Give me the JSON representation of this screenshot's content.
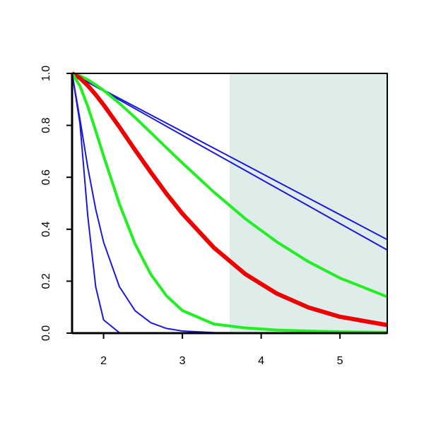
{
  "chart_data": {
    "type": "line",
    "x": [
      1.6,
      1.7,
      1.8,
      1.9,
      2.0,
      2.2,
      2.4,
      2.6,
      2.8,
      3.0,
      3.4,
      3.8,
      4.2,
      4.6,
      5.0,
      5.6
    ],
    "series": [
      {
        "color": "#1a1ad6",
        "width": 2,
        "values": [
          1,
          0.984,
          0.968,
          0.952,
          0.936,
          0.904,
          0.872,
          0.84,
          0.808,
          0.776,
          0.712,
          0.648,
          0.584,
          0.52,
          0.456,
          0.36
        ]
      },
      {
        "color": "#1a1ad6",
        "width": 2,
        "values": [
          1,
          0.983,
          0.966,
          0.949,
          0.932,
          0.898,
          0.864,
          0.83,
          0.796,
          0.762,
          0.694,
          0.626,
          0.558,
          0.49,
          0.422,
          0.32
        ]
      },
      {
        "color": "#22ee22",
        "width": 4,
        "values": [
          1,
          0.991,
          0.976,
          0.956,
          0.935,
          0.885,
          0.83,
          0.772,
          0.713,
          0.655,
          0.543,
          0.44,
          0.351,
          0.275,
          0.212,
          0.14
        ]
      },
      {
        "color": "#ee0000",
        "width": 6,
        "values": [
          1,
          0.982,
          0.953,
          0.918,
          0.879,
          0.794,
          0.705,
          0.619,
          0.536,
          0.46,
          0.329,
          0.227,
          0.152,
          0.099,
          0.063,
          0.031
        ]
      },
      {
        "color": "#22ee22",
        "width": 4,
        "values": [
          1,
          0.952,
          0.872,
          0.779,
          0.682,
          0.498,
          0.343,
          0.226,
          0.143,
          0.087,
          0.035,
          0.02,
          0.012,
          0.008,
          0.005,
          0.003
        ]
      },
      {
        "color": "#1a1ad6",
        "width": 2,
        "values": [
          1,
          0.824,
          0.637,
          0.477,
          0.35,
          0.179,
          0.086,
          0.04,
          0.018,
          0.008,
          0.002,
          0.001,
          0,
          0,
          0,
          0
        ]
      },
      {
        "color": "#1a1ad6",
        "width": 2,
        "values": [
          1,
          0.807,
          0.449,
          0.178,
          0.051,
          0.0016,
          0,
          0,
          0,
          0,
          0,
          0,
          0,
          0,
          0,
          0
        ]
      }
    ],
    "shaded_region": [
      3.6,
      5.6
    ],
    "shade_color": "#deecea",
    "xlim": [
      1.6,
      5.6
    ],
    "xticks": [
      2,
      3,
      4,
      5
    ],
    "ylim": [
      0,
      1
    ],
    "yticks": [
      {
        "value": 0,
        "label": "0.0"
      },
      0.2,
      0.4,
      0.6,
      0.8,
      {
        "value": 1,
        "label": "1.0"
      }
    ]
  }
}
